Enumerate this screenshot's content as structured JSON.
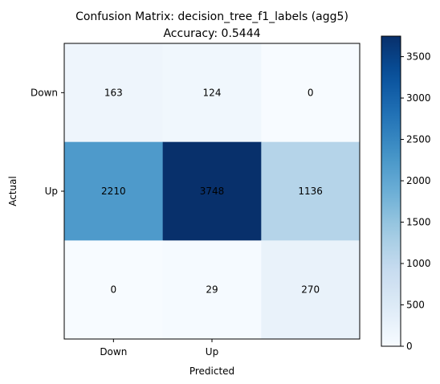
{
  "chart_data": {
    "type": "heatmap",
    "title": "Confusion Matrix: decision_tree_f1_labels (agg5)",
    "subtitle": "Accuracy: 0.5444",
    "xlabel": "Predicted",
    "ylabel": "Actual",
    "x_tick_labels": [
      "Down",
      "Up",
      ""
    ],
    "y_tick_labels": [
      "Down",
      "Up",
      ""
    ],
    "values": [
      [
        163,
        124,
        0
      ],
      [
        2210,
        3748,
        1136
      ],
      [
        0,
        29,
        270
      ]
    ],
    "colormap": "Blues",
    "color_range": [
      0,
      3748
    ],
    "colorbar_ticks": [
      0,
      500,
      1000,
      1500,
      2000,
      2500,
      3000,
      3500
    ]
  }
}
